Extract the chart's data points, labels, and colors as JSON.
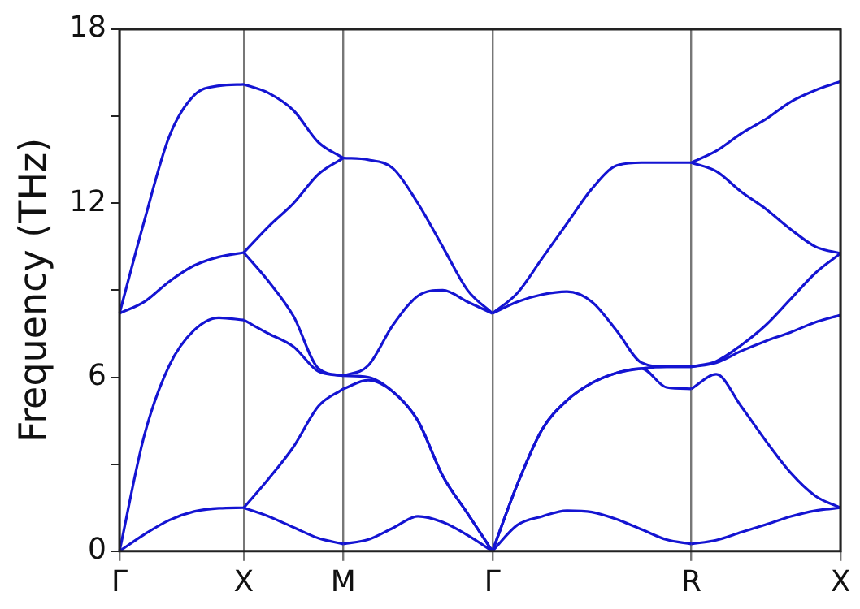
{
  "chart_data": {
    "type": "line",
    "ylabel": "Frequency (THz)",
    "categories": [
      "Γ",
      null,
      null,
      null,
      null,
      "X",
      null,
      null,
      null,
      "M",
      null,
      null,
      null,
      null,
      null,
      "Γ",
      null,
      null,
      null,
      null,
      null,
      null,
      null,
      "R",
      null,
      null,
      null,
      null,
      null,
      "X"
    ],
    "series": [
      {
        "color": "#1414d2",
        "values": [
          0,
          0.58,
          1.07,
          1.37,
          1.48,
          1.5,
          null,
          null,
          null,
          null,
          null,
          null,
          null,
          null,
          null,
          null,
          null,
          null,
          null,
          null,
          null,
          null,
          null,
          null,
          null,
          null,
          null,
          null,
          null,
          null
        ]
      },
      {
        "color": "#1414d2",
        "values": [
          0,
          4.0,
          6.4,
          7.62,
          8.05,
          7.97,
          null,
          null,
          null,
          null,
          null,
          null,
          null,
          null,
          null,
          null,
          null,
          null,
          null,
          null,
          null,
          null,
          null,
          null,
          null,
          null,
          null,
          null,
          null,
          null
        ]
      },
      {
        "color": "#1414d2",
        "values": [
          8.2,
          8.6,
          9.3,
          9.85,
          10.15,
          10.3,
          null,
          null,
          null,
          null,
          null,
          null,
          null,
          null,
          null,
          null,
          null,
          null,
          null,
          null,
          null,
          null,
          null,
          null,
          null,
          null,
          null,
          null,
          null,
          null
        ]
      },
      {
        "color": "#1414d2",
        "values": [
          8.2,
          11.4,
          14.3,
          15.72,
          16.05,
          16.1,
          null,
          null,
          null,
          null,
          null,
          null,
          null,
          null,
          null,
          null,
          null,
          null,
          null,
          null,
          null,
          null,
          null,
          null,
          null,
          null,
          null,
          null,
          null,
          null
        ]
      },
      {
        "color": "#1414d2",
        "values": [
          null,
          null,
          null,
          null,
          null,
          1.5,
          1.2,
          0.82,
          0.45,
          0.25,
          null,
          null,
          null,
          null,
          null,
          null,
          null,
          null,
          null,
          null,
          null,
          null,
          null,
          null,
          null,
          null,
          null,
          null,
          null,
          null
        ]
      },
      {
        "color": "#1414d2",
        "values": [
          null,
          null,
          null,
          null,
          null,
          1.5,
          2.5,
          3.6,
          5.0,
          5.6,
          null,
          null,
          null,
          null,
          null,
          null,
          null,
          null,
          null,
          null,
          null,
          null,
          null,
          null,
          null,
          null,
          null,
          null,
          null,
          null
        ]
      },
      {
        "color": "#1414d2",
        "values": [
          null,
          null,
          null,
          null,
          null,
          7.97,
          7.5,
          7.05,
          6.2,
          6.05,
          null,
          null,
          null,
          null,
          null,
          null,
          null,
          null,
          null,
          null,
          null,
          null,
          null,
          null,
          null,
          null,
          null,
          null,
          null,
          null
        ]
      },
      {
        "color": "#1414d2",
        "values": [
          null,
          null,
          null,
          null,
          null,
          10.3,
          9.3,
          8.1,
          6.3,
          6.05,
          null,
          null,
          null,
          null,
          null,
          null,
          null,
          null,
          null,
          null,
          null,
          null,
          null,
          null,
          null,
          null,
          null,
          null,
          null,
          null
        ]
      },
      {
        "color": "#1414d2",
        "values": [
          null,
          null,
          null,
          null,
          null,
          10.3,
          11.2,
          12.0,
          13.0,
          13.56,
          null,
          null,
          null,
          null,
          null,
          null,
          null,
          null,
          null,
          null,
          null,
          null,
          null,
          null,
          null,
          null,
          null,
          null,
          null,
          null
        ]
      },
      {
        "color": "#1414d2",
        "values": [
          null,
          null,
          null,
          null,
          null,
          16.1,
          15.8,
          15.2,
          14.1,
          13.56,
          null,
          null,
          null,
          null,
          null,
          null,
          null,
          null,
          null,
          null,
          null,
          null,
          null,
          null,
          null,
          null,
          null,
          null,
          null,
          null
        ]
      },
      {
        "color": "#1414d2",
        "values": [
          null,
          null,
          null,
          null,
          null,
          null,
          null,
          null,
          null,
          0.25,
          0.4,
          0.8,
          1.2,
          1.0,
          0.55,
          0,
          null,
          null,
          null,
          null,
          null,
          null,
          null,
          null,
          null,
          null,
          null,
          null,
          null,
          null
        ]
      },
      {
        "color": "#1414d2",
        "values": [
          null,
          null,
          null,
          null,
          null,
          null,
          null,
          null,
          null,
          5.6,
          5.9,
          5.5,
          4.5,
          2.6,
          1.3,
          0,
          null,
          null,
          null,
          null,
          null,
          null,
          null,
          null,
          null,
          null,
          null,
          null,
          null,
          null
        ]
      },
      {
        "color": "#1414d2",
        "values": [
          null,
          null,
          null,
          null,
          null,
          null,
          null,
          null,
          null,
          6.05,
          6.0,
          5.5,
          4.5,
          2.6,
          1.3,
          0,
          null,
          null,
          null,
          null,
          null,
          null,
          null,
          null,
          null,
          null,
          null,
          null,
          null,
          null
        ]
      },
      {
        "color": "#1414d2",
        "values": [
          null,
          null,
          null,
          null,
          null,
          null,
          null,
          null,
          null,
          6.05,
          6.4,
          7.8,
          8.8,
          9.0,
          8.6,
          8.2,
          null,
          null,
          null,
          null,
          null,
          null,
          null,
          null,
          null,
          null,
          null,
          null,
          null,
          null
        ]
      },
      {
        "color": "#1414d2",
        "values": [
          null,
          null,
          null,
          null,
          null,
          null,
          null,
          null,
          null,
          13.56,
          13.5,
          13.2,
          12.0,
          10.5,
          9.0,
          8.2,
          null,
          null,
          null,
          null,
          null,
          null,
          null,
          null,
          null,
          null,
          null,
          null,
          null,
          null
        ]
      },
      {
        "color": "#1414d2",
        "values": [
          null,
          null,
          null,
          null,
          null,
          null,
          null,
          null,
          null,
          null,
          null,
          null,
          null,
          null,
          null,
          0,
          0.9,
          1.2,
          1.4,
          1.35,
          1.1,
          0.75,
          0.4,
          0.25,
          null,
          null,
          null,
          null,
          null,
          null
        ]
      },
      {
        "color": "#1414d2",
        "values": [
          null,
          null,
          null,
          null,
          null,
          null,
          null,
          null,
          null,
          null,
          null,
          null,
          null,
          null,
          null,
          0,
          2.3,
          4.2,
          5.2,
          5.8,
          6.15,
          6.3,
          5.65,
          5.6,
          null,
          null,
          null,
          null,
          null,
          null
        ]
      },
      {
        "color": "#1414d2",
        "values": [
          null,
          null,
          null,
          null,
          null,
          null,
          null,
          null,
          null,
          null,
          null,
          null,
          null,
          null,
          null,
          0,
          2.3,
          4.2,
          5.2,
          5.8,
          6.15,
          6.3,
          6.36,
          6.36,
          null,
          null,
          null,
          null,
          null,
          null
        ]
      },
      {
        "color": "#1414d2",
        "values": [
          null,
          null,
          null,
          null,
          null,
          null,
          null,
          null,
          null,
          null,
          null,
          null,
          null,
          null,
          null,
          8.2,
          8.6,
          8.85,
          8.95,
          8.6,
          7.6,
          6.5,
          6.36,
          6.36,
          null,
          null,
          null,
          null,
          null,
          null
        ]
      },
      {
        "color": "#1414d2",
        "values": [
          null,
          null,
          null,
          null,
          null,
          null,
          null,
          null,
          null,
          null,
          null,
          null,
          null,
          null,
          null,
          8.2,
          8.9,
          10.1,
          11.3,
          12.5,
          13.3,
          13.4,
          13.4,
          13.4,
          null,
          null,
          null,
          null,
          null,
          null
        ]
      },
      {
        "color": "#1414d2",
        "values": [
          null,
          null,
          null,
          null,
          null,
          null,
          null,
          null,
          null,
          null,
          null,
          null,
          null,
          null,
          null,
          null,
          null,
          null,
          null,
          null,
          null,
          null,
          null,
          0.25,
          0.38,
          0.65,
          0.92,
          1.2,
          1.4,
          1.5
        ]
      },
      {
        "color": "#1414d2",
        "values": [
          null,
          null,
          null,
          null,
          null,
          null,
          null,
          null,
          null,
          null,
          null,
          null,
          null,
          null,
          null,
          null,
          null,
          null,
          null,
          null,
          null,
          null,
          null,
          5.6,
          6.1,
          5.0,
          3.8,
          2.7,
          1.9,
          1.5
        ]
      },
      {
        "color": "#1414d2",
        "values": [
          null,
          null,
          null,
          null,
          null,
          null,
          null,
          null,
          null,
          null,
          null,
          null,
          null,
          null,
          null,
          null,
          null,
          null,
          null,
          null,
          null,
          null,
          null,
          6.36,
          6.5,
          6.9,
          7.25,
          7.55,
          7.9,
          8.14
        ]
      },
      {
        "color": "#1414d2",
        "values": [
          null,
          null,
          null,
          null,
          null,
          null,
          null,
          null,
          null,
          null,
          null,
          null,
          null,
          null,
          null,
          null,
          null,
          null,
          null,
          null,
          null,
          null,
          null,
          6.36,
          6.55,
          7.1,
          7.8,
          8.7,
          9.6,
          10.27
        ]
      },
      {
        "color": "#1414d2",
        "values": [
          null,
          null,
          null,
          null,
          null,
          null,
          null,
          null,
          null,
          null,
          null,
          null,
          null,
          null,
          null,
          null,
          null,
          null,
          null,
          null,
          null,
          null,
          null,
          13.4,
          13.1,
          12.4,
          11.8,
          11.1,
          10.5,
          10.27
        ]
      },
      {
        "color": "#1414d2",
        "values": [
          null,
          null,
          null,
          null,
          null,
          null,
          null,
          null,
          null,
          null,
          null,
          null,
          null,
          null,
          null,
          null,
          null,
          null,
          null,
          null,
          null,
          null,
          null,
          13.4,
          13.8,
          14.4,
          14.9,
          15.5,
          15.9,
          16.2
        ]
      }
    ],
    "ylim": [
      0,
      18
    ],
    "yticks": [
      0,
      {
        "value": 3,
        "label": null
      },
      6,
      {
        "value": 9,
        "label": null
      },
      12,
      {
        "value": 15,
        "label": null
      },
      18
    ],
    "grid": "x",
    "legend": false,
    "marker": "none",
    "line_style": "solid"
  }
}
